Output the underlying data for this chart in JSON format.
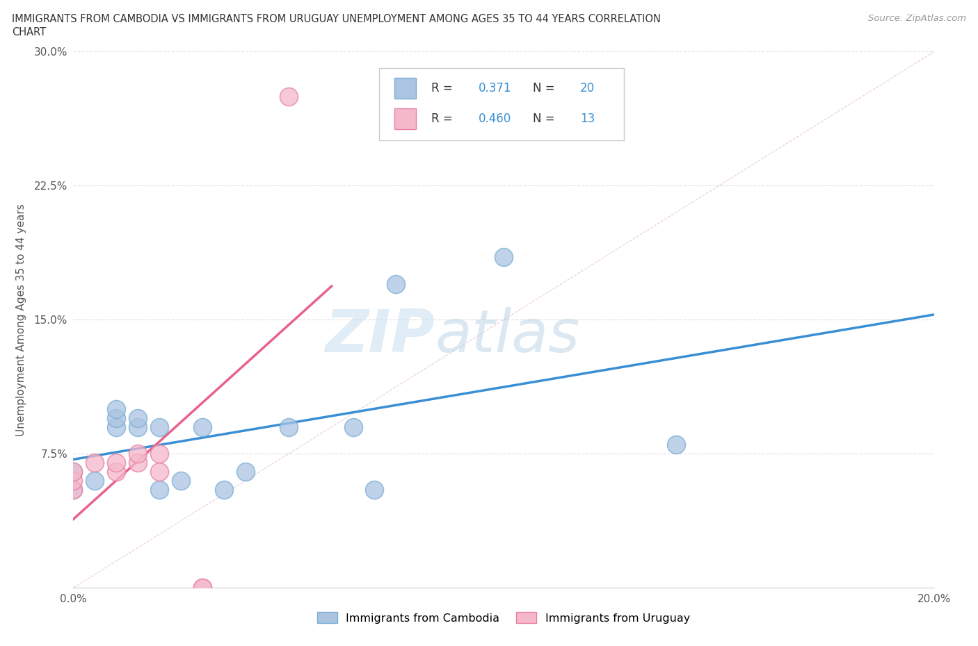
{
  "title_line1": "IMMIGRANTS FROM CAMBODIA VS IMMIGRANTS FROM URUGUAY UNEMPLOYMENT AMONG AGES 35 TO 44 YEARS CORRELATION",
  "title_line2": "CHART",
  "source": "Source: ZipAtlas.com",
  "ylabel": "Unemployment Among Ages 35 to 44 years",
  "xlim": [
    0.0,
    0.2
  ],
  "ylim": [
    0.0,
    0.3
  ],
  "xticks": [
    0.0,
    0.05,
    0.1,
    0.15,
    0.2
  ],
  "xticklabels": [
    "0.0%",
    "",
    "",
    "",
    "20.0%"
  ],
  "yticks": [
    0.0,
    0.075,
    0.15,
    0.225,
    0.3
  ],
  "yticklabels": [
    "",
    "7.5%",
    "15.0%",
    "22.5%",
    "30.0%"
  ],
  "cambodia_color": "#aac4e2",
  "cambodia_edge": "#7bafd4",
  "uruguay_color": "#f5b8cb",
  "uruguay_edge": "#e880a0",
  "trend_cambodia_color": "#3a8fd4",
  "trend_uruguay_color": "#e8628a",
  "diag_color": "#cccccc",
  "R_cambodia": 0.371,
  "N_cambodia": 20,
  "R_uruguay": 0.46,
  "N_uruguay": 13,
  "cambodia_x": [
    0.0,
    0.0,
    0.005,
    0.01,
    0.01,
    0.01,
    0.015,
    0.015,
    0.02,
    0.02,
    0.025,
    0.03,
    0.035,
    0.04,
    0.05,
    0.065,
    0.07,
    0.075,
    0.1,
    0.14
  ],
  "cambodia_y": [
    0.055,
    0.065,
    0.06,
    0.09,
    0.095,
    0.1,
    0.09,
    0.095,
    0.055,
    0.09,
    0.06,
    0.09,
    0.055,
    0.065,
    0.09,
    0.09,
    0.055,
    0.17,
    0.185,
    0.08
  ],
  "uruguay_x": [
    0.0,
    0.0,
    0.0,
    0.005,
    0.01,
    0.01,
    0.015,
    0.015,
    0.02,
    0.02,
    0.03,
    0.03,
    0.05
  ],
  "uruguay_y": [
    0.055,
    0.06,
    0.065,
    0.07,
    0.065,
    0.07,
    0.07,
    0.075,
    0.065,
    0.075,
    0.0,
    0.0,
    0.275
  ],
  "watermark_zip": "ZIP",
  "watermark_atlas": "atlas",
  "background_color": "#ffffff",
  "grid_color": "#dddddd",
  "legend_text_color": "#333333",
  "legend_value_color": "#3a8fd4"
}
